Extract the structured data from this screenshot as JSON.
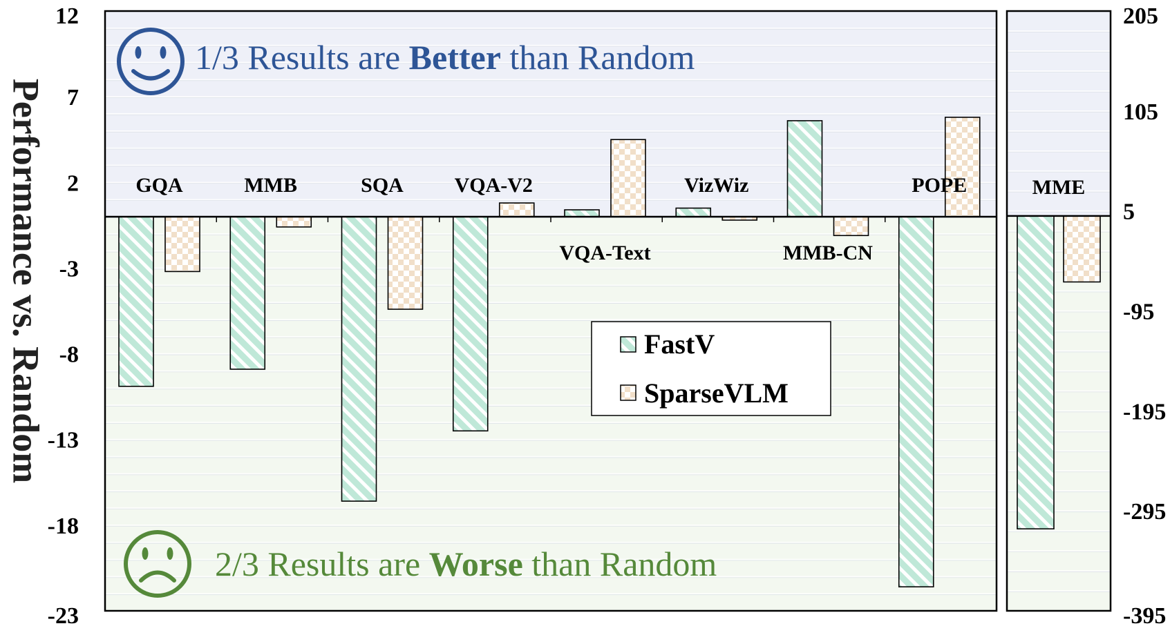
{
  "colors": {
    "fastv_fill": "#bfe8d8",
    "fastv_stripe": "#ffffff",
    "sparse_fill": "#f1dfc9",
    "sparse_check": "#ffffff",
    "better_bg": "#eef0f8",
    "worse_bg": "#f3f8f0",
    "better_text": "#2e5596",
    "worse_text": "#55893a",
    "axis": "#000000"
  },
  "text": {
    "ylabel": "Performance vs. Random",
    "better_prefix": "1/3 Results are ",
    "better_bold": "Better",
    "better_suffix": " than Random",
    "worse_prefix": "2/3 Results are ",
    "worse_bold": "Worse",
    "worse_suffix": " than Random",
    "better_icon": "smiley-face-icon",
    "worse_icon": "sad-face-icon"
  },
  "chart_data": [
    {
      "type": "bar",
      "ylabel": "Performance vs. Random",
      "ylim": [
        -23,
        12
      ],
      "yticks": [
        12,
        7,
        2,
        -3,
        -8,
        -13,
        -18,
        -23
      ],
      "categories": [
        "GQA",
        "MMB",
        "SQA",
        "VQA-V2",
        "VQA-Text",
        "VizWiz",
        "MMB-CN",
        "POPE"
      ],
      "label_above": [
        true,
        true,
        true,
        true,
        false,
        true,
        false,
        true
      ],
      "series": [
        {
          "name": "FastV",
          "values": [
            -9.9,
            -8.9,
            -16.6,
            -12.5,
            0.4,
            0.5,
            5.6,
            -21.6
          ]
        },
        {
          "name": "SparseVLM",
          "values": [
            -3.2,
            -0.6,
            -5.4,
            0.8,
            4.5,
            -0.2,
            -1.1,
            5.8
          ]
        }
      ],
      "legend": {
        "position": "center",
        "entries": [
          "FastV",
          "SparseVLM"
        ]
      },
      "grid": true
    },
    {
      "type": "bar",
      "ylim": [
        -395,
        205
      ],
      "yticks": [
        205,
        105,
        5,
        -95,
        -195,
        -295,
        -395
      ],
      "axis_side": "right",
      "categories": [
        "MME"
      ],
      "label_above": [
        true
      ],
      "series": [
        {
          "name": "FastV",
          "values": [
            -313
          ]
        },
        {
          "name": "SparseVLM",
          "values": [
            -66
          ]
        }
      ]
    }
  ]
}
